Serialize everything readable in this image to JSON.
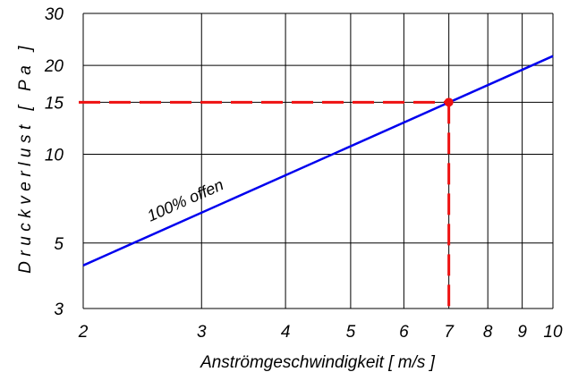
{
  "chart_data": {
    "type": "line",
    "title": "",
    "xlabel": "Anströmgeschwindigkeit [ m/s ]",
    "ylabel": "Druckverlust  [ Pa ]",
    "x_scale": "log",
    "y_scale": "log",
    "xlim": [
      2,
      10
    ],
    "ylim": [
      3,
      30
    ],
    "grid": true,
    "x_ticks": [
      2,
      3,
      4,
      5,
      6,
      7,
      8,
      9,
      10
    ],
    "x_tick_labels": [
      "2",
      "3",
      "4",
      "5",
      "6",
      "7",
      "8",
      "9",
      "10"
    ],
    "y_ticks": [
      3,
      5,
      10,
      15,
      20,
      30
    ],
    "y_tick_labels": [
      "3",
      "5",
      "10",
      "15",
      "20",
      "30"
    ],
    "series": [
      {
        "name": "100% offen",
        "color": "#0000ee",
        "x": [
          2,
          10
        ],
        "y": [
          4.2,
          21.5
        ]
      }
    ],
    "marker": {
      "x": 7,
      "y": 15,
      "color": "#ee1111",
      "line_style": "dashed"
    }
  }
}
